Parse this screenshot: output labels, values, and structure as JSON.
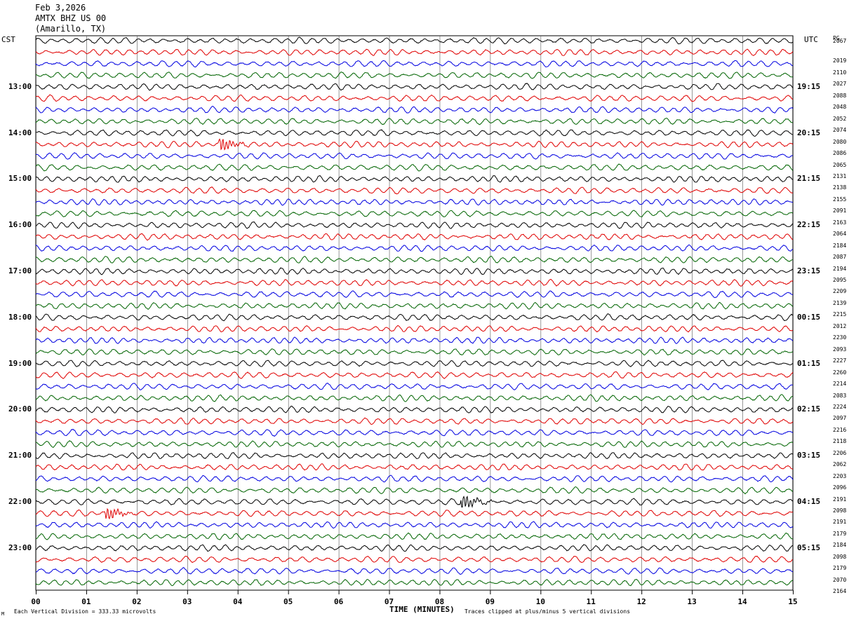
{
  "header": {
    "date": "Feb 3,2026",
    "station": "AMTX BHZ US 00",
    "location": "(Amarillo, TX)"
  },
  "left_zone": "CST",
  "right_zone": "UTC",
  "right_header": "PG",
  "footer": {
    "xlabel": "TIME (MINUTES)",
    "scale_note": "Each Vertical Division =  333.33 microvolts",
    "clip_note": "Traces clipped at plus/minus 5 vertical divisions",
    "corner_mark": "M"
  },
  "colors": {
    "trace_cycle": [
      "#000000",
      "#e00000",
      "#0000e0",
      "#006400"
    ],
    "grid": "#555555"
  },
  "chart_data": {
    "type": "line",
    "title": "AMTX BHZ US 00",
    "xlabel": "TIME (MINUTES)",
    "xlim": [
      0,
      15
    ],
    "x_ticks": [
      "00",
      "01",
      "02",
      "03",
      "04",
      "05",
      "06",
      "07",
      "08",
      "09",
      "10",
      "11",
      "12",
      "13",
      "14",
      "15"
    ],
    "rows_per_hour": 4,
    "row_count": 48,
    "left_hour_labels": [
      "13:00",
      "14:00",
      "15:00",
      "16:00",
      "17:00",
      "18:00",
      "19:00",
      "20:00",
      "21:00",
      "22:00",
      "23:00"
    ],
    "right_hour_labels": [
      "19:15",
      "20:15",
      "21:15",
      "22:15",
      "23:15",
      "00:15",
      "01:15",
      "02:15",
      "03:15",
      "04:15",
      "05:15"
    ],
    "row_counts": [
      "2067",
      "2019",
      "2110",
      "2027",
      "2088",
      "2048",
      "2052",
      "2074",
      "2080",
      "2086",
      "2065",
      "2131",
      "2138",
      "2155",
      "2091",
      "2163",
      "2064",
      "2184",
      "2087",
      "2194",
      "2095",
      "2209",
      "2139",
      "2215",
      "2012",
      "2230",
      "2093",
      "2227",
      "2260",
      "2214",
      "2083",
      "2224",
      "2097",
      "2216",
      "2118",
      "2206",
      "2062",
      "2203",
      "2096",
      "2191",
      "2098",
      "2191",
      "2179",
      "2184",
      "2098",
      "2179",
      "2070",
      "2164"
    ],
    "events": [
      {
        "row": 9,
        "minute": 3.7,
        "amp": 2.4
      },
      {
        "row": 41,
        "minute": 1.45,
        "amp": 2.2
      },
      {
        "row": 40,
        "minute": 8.5,
        "amp": 2.6
      }
    ]
  }
}
